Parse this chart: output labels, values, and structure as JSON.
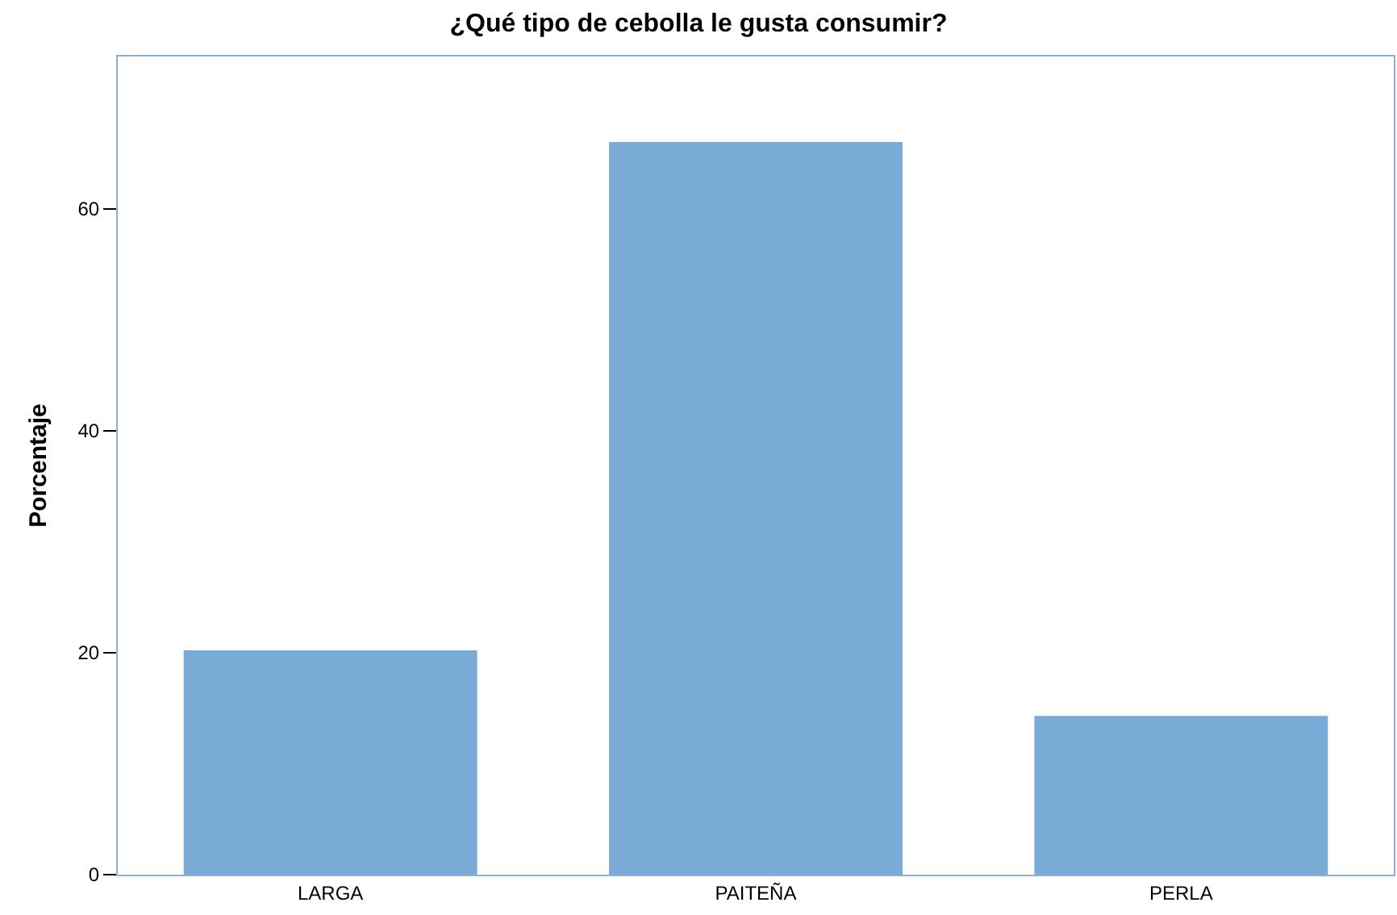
{
  "chart_data": {
    "type": "bar",
    "title": "¿Qué tipo de cebolla le gusta consumir?",
    "ylabel": "Porcentaje",
    "categories": [
      "LARGA",
      "PAITEÑA",
      "PERLA"
    ],
    "values": [
      20.2,
      66.0,
      14.3
    ],
    "color": "#7aaad6",
    "ylim": [
      0,
      73.7
    ],
    "yticks": [
      0,
      20,
      40,
      60
    ]
  }
}
